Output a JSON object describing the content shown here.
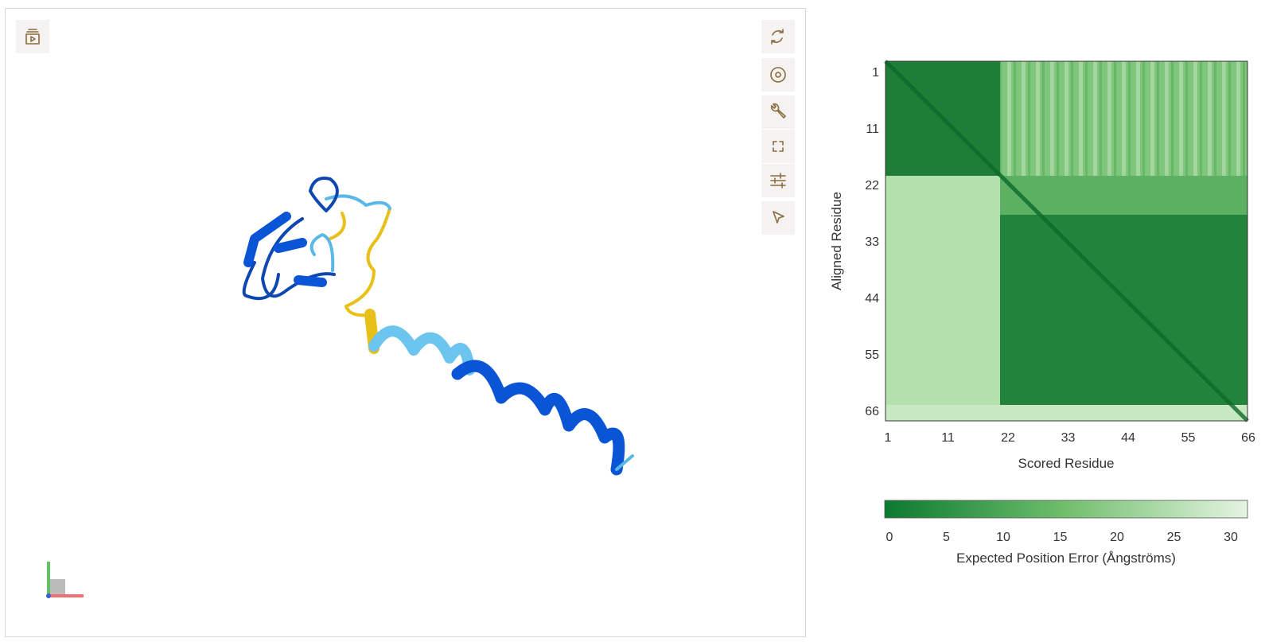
{
  "pae": {
    "y_axis_label": "Aligned Residue",
    "x_axis_label": "Scored Residue",
    "y_ticks": [
      1,
      11,
      22,
      33,
      44,
      55,
      66
    ],
    "x_ticks": [
      1,
      11,
      22,
      33,
      44,
      55,
      66
    ]
  },
  "colorbar": {
    "ticks": [
      0,
      5,
      10,
      15,
      20,
      25,
      30
    ],
    "label": "Expected Position Error (Ångströms)"
  }
}
